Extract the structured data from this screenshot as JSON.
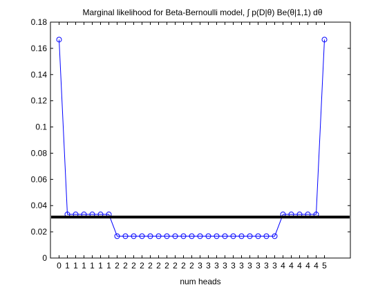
{
  "chart_data": {
    "type": "line",
    "title": "Marginal likelihood for Beta-Bernoulli model, ∫ p(D|θ) Be(θ|1,1) dθ",
    "xlabel": "num heads",
    "ylabel": "",
    "x_tick_labels": [
      "0",
      "1",
      "1",
      "1",
      "1",
      "1",
      "1",
      "2",
      "2",
      "2",
      "2",
      "2",
      "2",
      "2",
      "2",
      "2",
      "2",
      "3",
      "3",
      "3",
      "3",
      "3",
      "3",
      "3",
      "3",
      "3",
      "3",
      "4",
      "4",
      "4",
      "4",
      "4",
      "5"
    ],
    "ylim": [
      0,
      0.18
    ],
    "y_ticks": [
      "0",
      "0.02",
      "0.04",
      "0.06",
      "0.08",
      "0.1",
      "0.12",
      "0.14",
      "0.16",
      "0.18"
    ],
    "series": [
      {
        "values": [
          0.1667,
          0.0333,
          0.0333,
          0.0333,
          0.0333,
          0.0333,
          0.0333,
          0.0167,
          0.0167,
          0.0167,
          0.0167,
          0.0167,
          0.0167,
          0.0167,
          0.0167,
          0.0167,
          0.0167,
          0.0167,
          0.0167,
          0.0167,
          0.0167,
          0.0167,
          0.0167,
          0.0167,
          0.0167,
          0.0167,
          0.0167,
          0.0333,
          0.0333,
          0.0333,
          0.0333,
          0.0333,
          0.1667
        ],
        "color": "#0000ff",
        "marker": "circle"
      }
    ],
    "reference_line": {
      "y": 0.03125,
      "color": "#000000"
    },
    "grid": false,
    "legend": "none"
  }
}
